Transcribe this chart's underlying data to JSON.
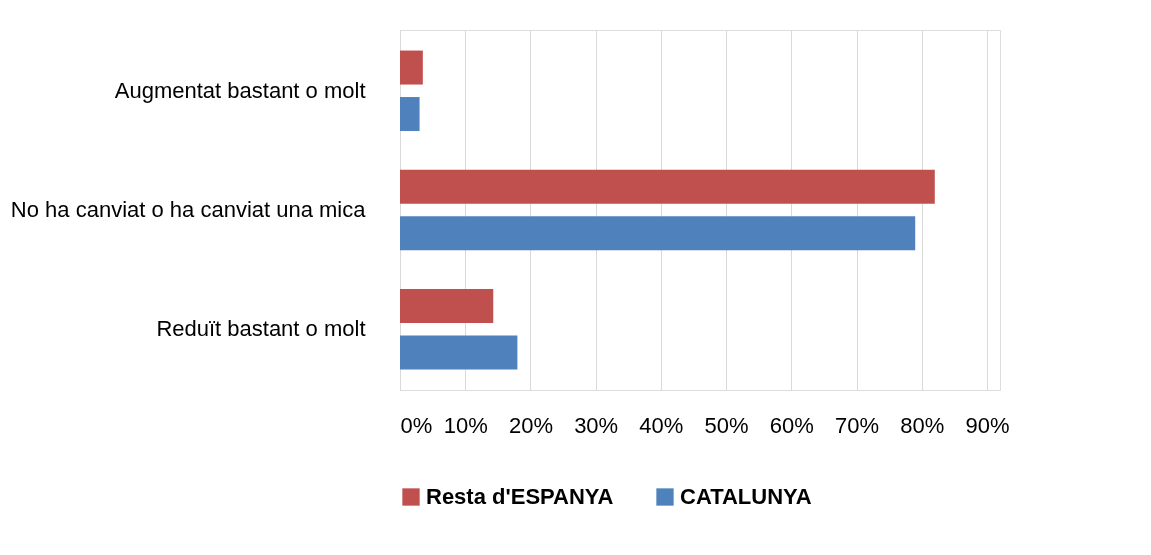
{
  "chart_data": {
    "type": "bar",
    "orientation": "horizontal",
    "categories": [
      "Augmentat bastant o molt",
      "No ha canviat o ha canviat una mica",
      "Reduït bastant o molt"
    ],
    "series": [
      {
        "name": "Resta d'ESPANYA",
        "color": "#c0504d",
        "values": [
          3.5,
          82,
          14.3
        ]
      },
      {
        "name": "CATALUNYA",
        "color": "#4f81bd",
        "values": [
          3,
          79,
          18
        ]
      }
    ],
    "xlim": [
      0,
      92
    ],
    "xticks": [
      {
        "value": 0,
        "label": "0%"
      },
      {
        "value": 10,
        "label": "10%"
      },
      {
        "value": 20,
        "label": "20%"
      },
      {
        "value": 30,
        "label": "30%"
      },
      {
        "value": 40,
        "label": "40%"
      },
      {
        "value": 50,
        "label": "50%"
      },
      {
        "value": 60,
        "label": "60%"
      },
      {
        "value": 70,
        "label": "70%"
      },
      {
        "value": 80,
        "label": "80%"
      },
      {
        "value": 90,
        "label": "90%"
      }
    ],
    "grid": "x",
    "legend": "bottom"
  }
}
